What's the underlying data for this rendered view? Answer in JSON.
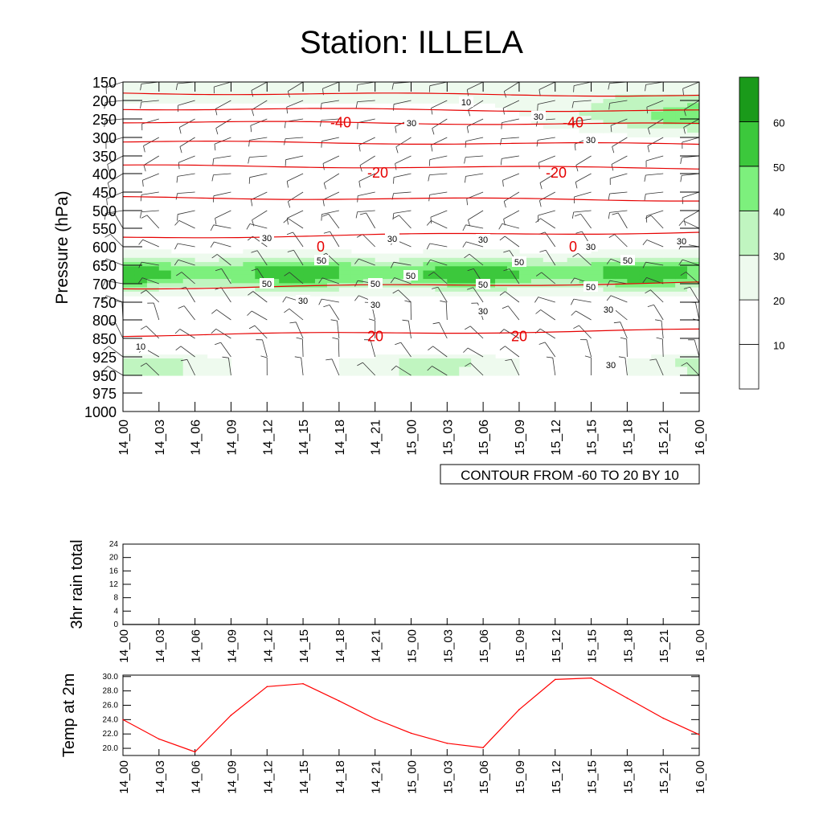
{
  "title": "Station: ILLELA",
  "x_tick_labels": [
    "14_00",
    "14_03",
    "14_06",
    "14_09",
    "14_12",
    "14_15",
    "14_18",
    "14_21",
    "15_00",
    "15_03",
    "15_06",
    "15_09",
    "15_12",
    "15_15",
    "15_18",
    "15_21",
    "16_00"
  ],
  "chart_data": [
    {
      "type": "heatmap",
      "ylabel": "Pressure (hPa)",
      "y_ticks": [
        150,
        200,
        250,
        300,
        350,
        400,
        450,
        500,
        550,
        600,
        650,
        700,
        750,
        800,
        850,
        925,
        950,
        975,
        1000
      ],
      "footer": "CONTOUR FROM -60 TO 20 BY 10",
      "temperature_contours": [
        {
          "label": "-40",
          "pressure": 258
        },
        {
          "label": "-20",
          "pressure": 395
        },
        {
          "label": "0",
          "pressure": 598
        },
        {
          "label": "20",
          "pressure": 842
        }
      ],
      "humidity_labels": [
        "10",
        "30",
        "50"
      ],
      "colorbar": {
        "levels": [
          "10",
          "20",
          "30",
          "40",
          "50",
          "60"
        ],
        "colors": [
          "#ffffff",
          "#ffffff",
          "#eefaee",
          "#c0f5c0",
          "#7df07d",
          "#3cc83c",
          "#1a9a1a"
        ]
      }
    },
    {
      "type": "line",
      "ylabel": "3hr rain total",
      "y_ticks": [
        "0",
        "4",
        "8",
        "12",
        "16",
        "20",
        "24"
      ],
      "ylim": [
        0,
        24
      ],
      "values": [
        0,
        0,
        0,
        0,
        0,
        0,
        0,
        0,
        0,
        0,
        0,
        0,
        0,
        0,
        0,
        0,
        0
      ]
    },
    {
      "type": "line",
      "ylabel": "Temp at 2m",
      "y_ticks": [
        "20.0",
        "22.0",
        "24.0",
        "26.0",
        "28.0",
        "30.0"
      ],
      "ylim": [
        19.0,
        30.2
      ],
      "values": [
        24.0,
        21.3,
        19.5,
        24.6,
        28.6,
        29.0,
        26.6,
        24.1,
        22.1,
        20.7,
        20.1,
        25.4,
        29.6,
        29.8,
        27.0,
        24.2,
        21.9
      ],
      "color": "#ff0000"
    }
  ]
}
